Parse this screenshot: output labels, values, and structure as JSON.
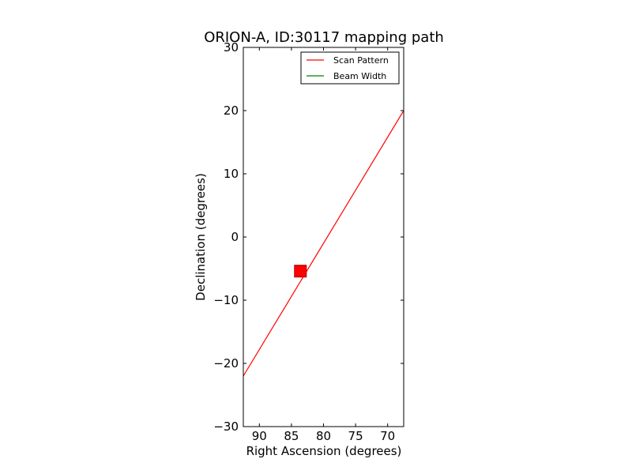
{
  "chart_data": {
    "type": "line",
    "title": "ORION-A, ID:30117 mapping path",
    "xlabel": "Right Ascension (degrees)",
    "ylabel": "Declination (degrees)",
    "xlim": [
      92.5,
      67.5
    ],
    "ylim": [
      -30,
      30
    ],
    "x_inverted": true,
    "xticks": [
      90,
      85,
      80,
      75,
      70
    ],
    "yticks": [
      -30,
      -20,
      -10,
      0,
      10,
      20,
      30
    ],
    "grid": false,
    "legend_placement": "top-right",
    "series": [
      {
        "name": "Scan Pattern",
        "color": "#ff0000",
        "x": [
          92.5,
          67.5
        ],
        "y": [
          -22,
          20
        ]
      },
      {
        "name": "Beam Width",
        "color": "#008000",
        "x": [],
        "y": []
      }
    ],
    "markers": [
      {
        "x": 83.6,
        "y": -5.4,
        "shape": "square",
        "color": "#ff0000"
      }
    ]
  }
}
